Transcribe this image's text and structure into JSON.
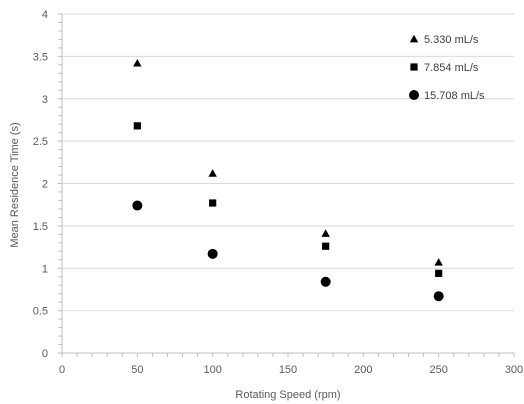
{
  "chart_data": {
    "type": "scatter",
    "title": "",
    "xlabel": "Rotating Speed (rpm)",
    "ylabel": "Mean Residence Time (s)",
    "xlim": [
      0,
      300
    ],
    "ylim": [
      0,
      4
    ],
    "xticks": [
      "0",
      "50",
      "100",
      "150",
      "200",
      "250",
      "300"
    ],
    "yticks": [
      "0",
      "0.5",
      "1",
      "1.5",
      "2",
      "2.5",
      "3",
      "3.5",
      "4"
    ],
    "grid": "horizontal",
    "legend_position": "top-right",
    "series": [
      {
        "name": "5.330 mL/s",
        "marker": "triangle",
        "x": [
          50,
          100,
          175,
          250
        ],
        "y": [
          3.42,
          2.12,
          1.41,
          1.07
        ]
      },
      {
        "name": "7.854 mL/s",
        "marker": "square",
        "x": [
          50,
          100,
          175,
          250
        ],
        "y": [
          2.68,
          1.77,
          1.26,
          0.94
        ]
      },
      {
        "name": "15.708 mL/s",
        "marker": "circle",
        "x": [
          50,
          100,
          175,
          250
        ],
        "y": [
          1.74,
          1.17,
          0.84,
          0.67
        ]
      }
    ],
    "colors": {
      "marker": "#000000",
      "grid": "#d9d9d9",
      "axis": "#bfbfbf",
      "text": "#595959"
    }
  }
}
